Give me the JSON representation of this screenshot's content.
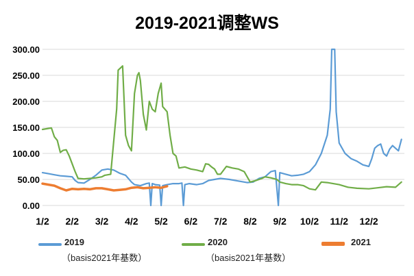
{
  "chart_data": {
    "type": "line",
    "title": "2019-2021调整WS",
    "xlabel": "",
    "ylabel": "",
    "ylim": [
      0,
      300
    ],
    "yticks": [
      "0.00",
      "50.00",
      "100.00",
      "150.00",
      "200.00",
      "250.00",
      "300.00"
    ],
    "xticks": [
      "1/2",
      "2/2",
      "3/2",
      "4/2",
      "5/2",
      "6/2",
      "7/2",
      "8/2",
      "9/2",
      "10/2",
      "11/2",
      "12/2"
    ],
    "x_unit": "month index (1 = Jan 2)",
    "grid": "horizontal",
    "legend_position": "bottom",
    "series": [
      {
        "name": "2019",
        "note": "（basis2021年基数）",
        "color": "#5b9bd5",
        "points": [
          [
            1.0,
            63
          ],
          [
            1.2,
            61
          ],
          [
            1.4,
            59
          ],
          [
            1.6,
            57
          ],
          [
            1.8,
            56
          ],
          [
            2.0,
            55
          ],
          [
            2.1,
            48
          ],
          [
            2.2,
            44
          ],
          [
            2.4,
            43
          ],
          [
            2.6,
            50
          ],
          [
            2.8,
            58
          ],
          [
            3.0,
            68
          ],
          [
            3.2,
            70
          ],
          [
            3.4,
            68
          ],
          [
            3.6,
            62
          ],
          [
            3.8,
            58
          ],
          [
            4.0,
            45
          ],
          [
            4.1,
            40
          ],
          [
            4.3,
            38
          ],
          [
            4.5,
            42
          ],
          [
            4.6,
            43
          ],
          [
            4.65,
            0
          ],
          [
            4.7,
            42
          ],
          [
            4.8,
            40
          ],
          [
            4.95,
            39
          ],
          [
            5.0,
            0
          ],
          [
            5.05,
            38
          ],
          [
            5.2,
            40
          ],
          [
            5.4,
            42
          ],
          [
            5.6,
            42
          ],
          [
            5.7,
            43
          ],
          [
            5.75,
            0
          ],
          [
            5.8,
            40
          ],
          [
            5.95,
            42
          ],
          [
            6.2,
            40
          ],
          [
            6.4,
            42
          ],
          [
            6.6,
            48
          ],
          [
            6.8,
            50
          ],
          [
            7.0,
            52
          ],
          [
            7.3,
            50
          ],
          [
            7.6,
            47
          ],
          [
            7.9,
            44
          ],
          [
            8.1,
            45
          ],
          [
            8.3,
            52
          ],
          [
            8.5,
            55
          ],
          [
            8.7,
            65
          ],
          [
            8.85,
            67
          ],
          [
            8.95,
            0
          ],
          [
            9.0,
            63
          ],
          [
            9.2,
            60
          ],
          [
            9.4,
            57
          ],
          [
            9.6,
            58
          ],
          [
            9.8,
            60
          ],
          [
            10.0,
            65
          ],
          [
            10.2,
            78
          ],
          [
            10.4,
            100
          ],
          [
            10.6,
            135
          ],
          [
            10.7,
            185
          ],
          [
            10.75,
            300
          ],
          [
            10.85,
            300
          ],
          [
            10.9,
            180
          ],
          [
            11.0,
            120
          ],
          [
            11.2,
            100
          ],
          [
            11.4,
            90
          ],
          [
            11.6,
            85
          ],
          [
            11.8,
            78
          ],
          [
            12.0,
            75
          ],
          [
            12.1,
            90
          ],
          [
            12.2,
            110
          ],
          [
            12.3,
            115
          ],
          [
            12.4,
            118
          ],
          [
            12.5,
            100
          ],
          [
            12.6,
            95
          ],
          [
            12.7,
            108
          ],
          [
            12.8,
            115
          ],
          [
            12.9,
            110
          ],
          [
            13.0,
            105
          ],
          [
            13.1,
            127
          ]
        ]
      },
      {
        "name": "2020",
        "note": "（basis2021年基数）",
        "color": "#70ad47",
        "points": [
          [
            1.0,
            146
          ],
          [
            1.2,
            148
          ],
          [
            1.3,
            149
          ],
          [
            1.4,
            132
          ],
          [
            1.5,
            125
          ],
          [
            1.6,
            102
          ],
          [
            1.7,
            106
          ],
          [
            1.8,
            107
          ],
          [
            1.9,
            95
          ],
          [
            2.0,
            80
          ],
          [
            2.1,
            65
          ],
          [
            2.2,
            52
          ],
          [
            2.4,
            51
          ],
          [
            2.6,
            52
          ],
          [
            2.8,
            53
          ],
          [
            3.0,
            55
          ],
          [
            3.1,
            58
          ],
          [
            3.3,
            60
          ],
          [
            3.5,
            185
          ],
          [
            3.55,
            260
          ],
          [
            3.7,
            268
          ],
          [
            3.8,
            135
          ],
          [
            3.9,
            115
          ],
          [
            4.0,
            105
          ],
          [
            4.1,
            215
          ],
          [
            4.2,
            250
          ],
          [
            4.25,
            255
          ],
          [
            4.3,
            240
          ],
          [
            4.4,
            175
          ],
          [
            4.5,
            145
          ],
          [
            4.6,
            200
          ],
          [
            4.7,
            185
          ],
          [
            4.8,
            180
          ],
          [
            4.9,
            215
          ],
          [
            5.0,
            235
          ],
          [
            5.05,
            190
          ],
          [
            5.2,
            180
          ],
          [
            5.3,
            135
          ],
          [
            5.4,
            100
          ],
          [
            5.5,
            95
          ],
          [
            5.6,
            72
          ],
          [
            5.8,
            74
          ],
          [
            6.0,
            70
          ],
          [
            6.2,
            68
          ],
          [
            6.4,
            65
          ],
          [
            6.5,
            80
          ],
          [
            6.6,
            79
          ],
          [
            6.7,
            74
          ],
          [
            6.8,
            70
          ],
          [
            6.9,
            60
          ],
          [
            7.0,
            60
          ],
          [
            7.2,
            75
          ],
          [
            7.4,
            72
          ],
          [
            7.6,
            70
          ],
          [
            7.8,
            65
          ],
          [
            8.0,
            45
          ],
          [
            8.2,
            48
          ],
          [
            8.4,
            52
          ],
          [
            8.5,
            55
          ],
          [
            8.7,
            53
          ],
          [
            8.9,
            50
          ],
          [
            9.0,
            45
          ],
          [
            9.2,
            42
          ],
          [
            9.4,
            40
          ],
          [
            9.6,
            40
          ],
          [
            9.8,
            38
          ],
          [
            10.0,
            32
          ],
          [
            10.2,
            30
          ],
          [
            10.4,
            45
          ],
          [
            10.6,
            44
          ],
          [
            10.8,
            42
          ],
          [
            11.0,
            40
          ],
          [
            11.3,
            35
          ],
          [
            11.6,
            33
          ],
          [
            12.0,
            32
          ],
          [
            12.3,
            34
          ],
          [
            12.6,
            36
          ],
          [
            12.9,
            35
          ],
          [
            13.1,
            45
          ]
        ]
      },
      {
        "name": "2021",
        "note": "",
        "color": "#ed7d31",
        "points": [
          [
            1.0,
            42
          ],
          [
            1.2,
            40
          ],
          [
            1.4,
            38
          ],
          [
            1.6,
            33
          ],
          [
            1.8,
            29
          ],
          [
            2.0,
            32
          ],
          [
            2.2,
            31
          ],
          [
            2.4,
            32
          ],
          [
            2.6,
            31
          ],
          [
            2.8,
            33
          ],
          [
            3.0,
            33
          ],
          [
            3.2,
            31
          ],
          [
            3.4,
            29
          ],
          [
            3.6,
            30
          ],
          [
            3.8,
            31
          ],
          [
            4.0,
            34
          ],
          [
            4.2,
            35
          ],
          [
            4.4,
            33
          ],
          [
            4.6,
            34
          ],
          [
            4.8,
            35
          ],
          [
            5.0,
            34
          ],
          [
            5.2,
            37
          ]
        ]
      }
    ]
  }
}
